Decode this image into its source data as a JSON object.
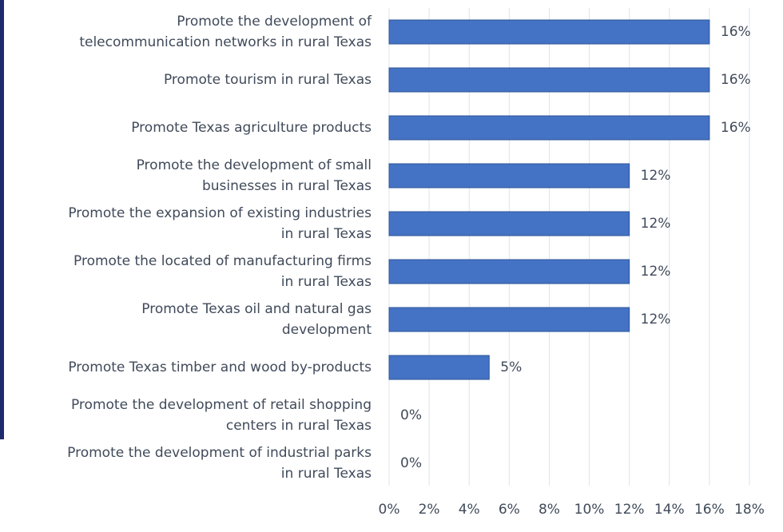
{
  "chart_data": {
    "type": "bar",
    "orientation": "horizontal",
    "categories": [
      [
        "Promote the development of",
        "telecommunication networks in rural Texas"
      ],
      [
        "Promote tourism in rural Texas"
      ],
      [
        "Promote Texas agriculture products"
      ],
      [
        "Promote the development of small",
        "businesses in rural Texas"
      ],
      [
        "Promote the expansion of existing industries",
        "in rural Texas"
      ],
      [
        "Promote the located of manufacturing firms",
        "in rural Texas"
      ],
      [
        "Promote Texas oil and natural gas",
        "development"
      ],
      [
        "Promote Texas timber and wood by-products"
      ],
      [
        "Promote the development of retail shopping",
        "centers in rural Texas"
      ],
      [
        "Promote the development of industrial parks",
        "in rural Texas"
      ]
    ],
    "values": [
      16,
      16,
      16,
      12,
      12,
      12,
      12,
      5,
      0,
      0
    ],
    "value_labels": [
      "16%",
      "16%",
      "16%",
      "12%",
      "12%",
      "12%",
      "12%",
      "5%",
      "0%",
      "0%"
    ],
    "color": "#4472c4",
    "xlim": [
      0,
      18
    ],
    "xticks": [
      {
        "value": 0,
        "label": "0%"
      },
      {
        "value": 2,
        "label": "2%"
      },
      {
        "value": 4,
        "label": "4%"
      },
      {
        "value": 6,
        "label": "6%"
      },
      {
        "value": 8,
        "label": "8%"
      },
      {
        "value": 10,
        "label": "10%"
      },
      {
        "value": 12,
        "label": "12%"
      },
      {
        "value": 14,
        "label": "14%"
      },
      {
        "value": 16,
        "label": "16%"
      },
      {
        "value": 18,
        "label": "18%"
      }
    ],
    "grid": true
  }
}
